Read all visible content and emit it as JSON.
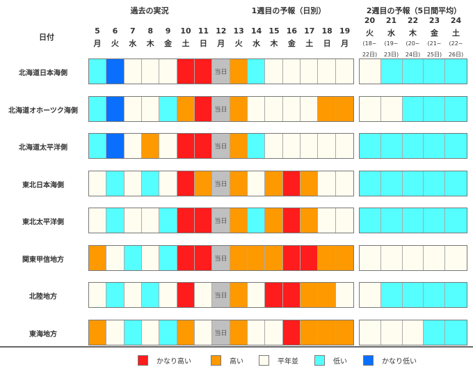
{
  "header": {
    "date_label": "日付",
    "section_past": "過去の実況",
    "section_week1": "1週目の予報（日別）",
    "section_week2": "2週目の予報（5日間平均）",
    "today_label": "当日"
  },
  "chart_data": {
    "type": "heatmap",
    "days": [
      {
        "day": "5",
        "wd": "月"
      },
      {
        "day": "6",
        "wd": "火"
      },
      {
        "day": "7",
        "wd": "水"
      },
      {
        "day": "8",
        "wd": "木"
      },
      {
        "day": "9",
        "wd": "金"
      },
      {
        "day": "10",
        "wd": "土"
      },
      {
        "day": "11",
        "wd": "日"
      },
      {
        "day": "12",
        "wd": "月"
      },
      {
        "day": "13",
        "wd": "火"
      },
      {
        "day": "14",
        "wd": "水"
      },
      {
        "day": "15",
        "wd": "木"
      },
      {
        "day": "16",
        "wd": "金"
      },
      {
        "day": "17",
        "wd": "土"
      },
      {
        "day": "18",
        "wd": "日"
      },
      {
        "day": "19",
        "wd": "月"
      }
    ],
    "week2_days": [
      {
        "day": "20",
        "wd": "火",
        "r1": "(18~",
        "r2": "22日)"
      },
      {
        "day": "21",
        "wd": "水",
        "r1": "(19~",
        "r2": "23日)"
      },
      {
        "day": "22",
        "wd": "木",
        "r1": "(20~",
        "r2": "24日)"
      },
      {
        "day": "23",
        "wd": "金",
        "r1": "(21~",
        "r2": "25日)"
      },
      {
        "day": "24",
        "wd": "土",
        "r1": "(22~",
        "r2": "26日)"
      }
    ],
    "legend": [
      {
        "code": "R",
        "label": "かなり高い",
        "color": "#ff1c1c"
      },
      {
        "code": "O",
        "label": "高い",
        "color": "#ff9900"
      },
      {
        "code": "N",
        "label": "平年並",
        "color": "#fffdf0"
      },
      {
        "code": "C",
        "label": "低い",
        "color": "#55ffff"
      },
      {
        "code": "B",
        "label": "かなり低い",
        "color": "#0a6fff"
      }
    ],
    "today_color": "#c0c0c0",
    "regions": [
      {
        "name": "北海道日本海側",
        "daily": "CBNNNRRTOCNNNNN",
        "week2": "NCCCC"
      },
      {
        "name": "北海道オホーツク海側",
        "daily": "CBNNCORTONNNNOO",
        "week2": "NNCCC"
      },
      {
        "name": "北海道太平洋側",
        "daily": "CBNONRRTOCNNNNN",
        "week2": "CCCCC"
      },
      {
        "name": "東北日本海側",
        "daily": "NCNCNROTONOROnN",
        "week2": "CCCCC"
      },
      {
        "name": "東北太平洋側",
        "daily": "NCNNCRRTOCOROnN",
        "week2": "CCCCC"
      },
      {
        "name": "関東甲信地方",
        "daily": "ONCNCRRTOOORROO",
        "week2": "NNNNN"
      },
      {
        "name": "北陸地方",
        "daily": "NCNCNRNTONRROON",
        "week2": "NCCCC"
      },
      {
        "name": "東海地方",
        "daily": "ONCNCONTONNROOO",
        "week2": "NNNCC"
      }
    ]
  }
}
